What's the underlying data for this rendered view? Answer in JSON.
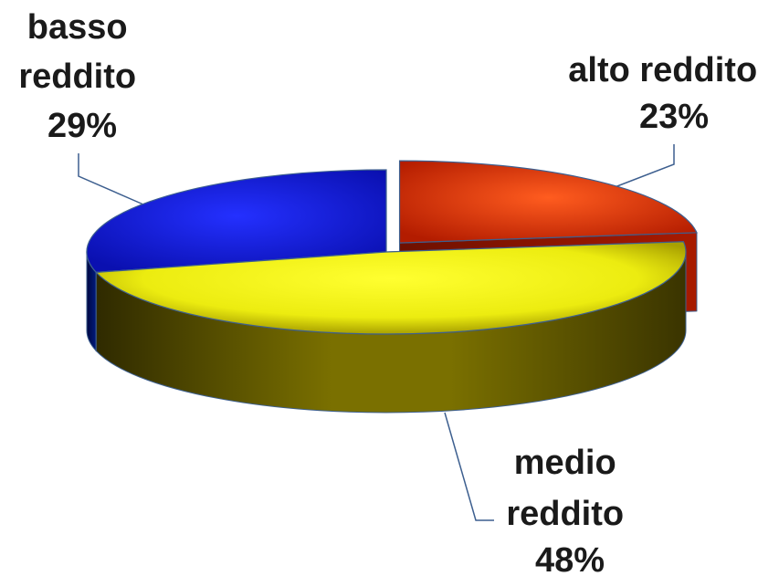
{
  "chart_data": {
    "type": "pie",
    "title": "",
    "categories": [
      "alto reddito",
      "medio reddito",
      "basso reddito"
    ],
    "values": [
      23,
      48,
      29
    ],
    "unit": "%",
    "exploded": "alto reddito",
    "slices": [
      {
        "name": "alto reddito",
        "value": 23,
        "display": "23%",
        "label_lines": [
          "alto reddito",
          "23%"
        ],
        "color_light": "#ff4a12",
        "color_dark": "#8f1500"
      },
      {
        "name": "medio reddito",
        "value": 48,
        "display": "48%",
        "label_lines": [
          "medio",
          "reddito",
          "48%"
        ],
        "color_light": "#ffff20",
        "color_dark": "#4a4400"
      },
      {
        "name": "basso reddito",
        "value": 29,
        "display": "29%",
        "label_lines": [
          "basso",
          "reddito",
          "29%"
        ],
        "color_light": "#1a22ff",
        "color_dark": "#000a70"
      }
    ],
    "legend": "none",
    "grid": false
  }
}
